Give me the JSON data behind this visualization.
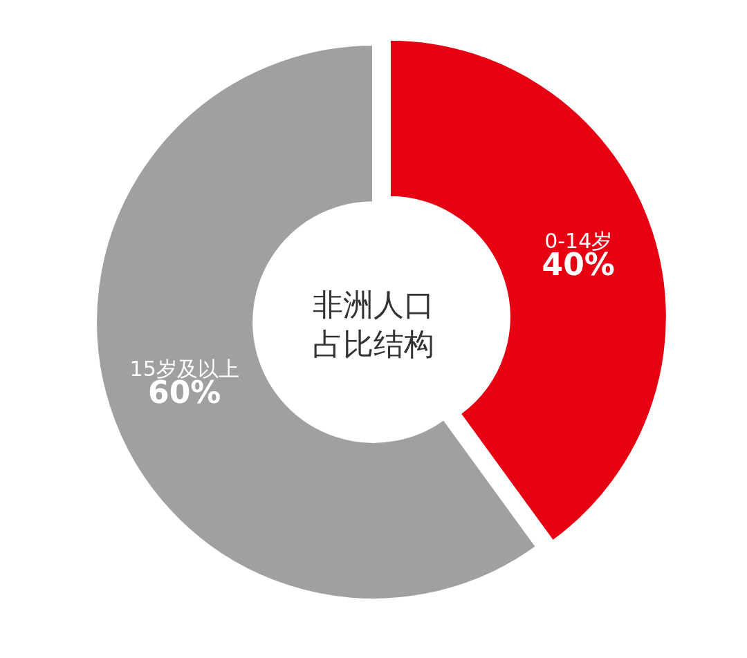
{
  "chart_data": {
    "type": "donut",
    "title": "非洲人口占比结构",
    "categories": [
      "0-14岁",
      "15岁及以上"
    ],
    "values": [
      40,
      60
    ],
    "value_labels": [
      "40%",
      "60%"
    ],
    "colors": [
      "#e60012",
      "#9fa0a0"
    ],
    "legend": false
  }
}
